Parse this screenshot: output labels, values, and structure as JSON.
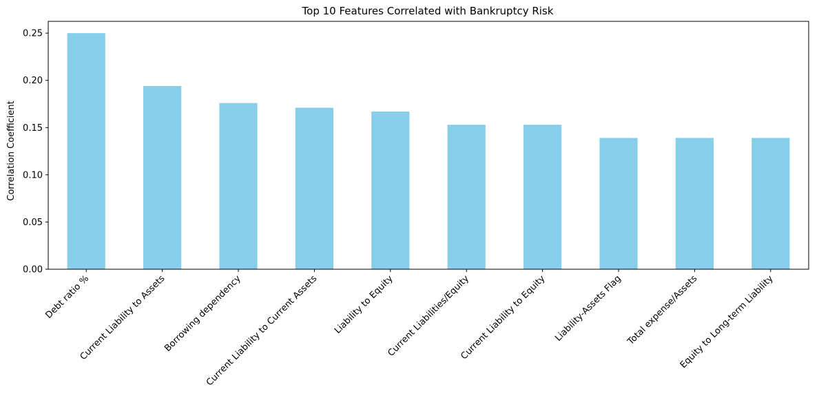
{
  "chart_data": {
    "type": "bar",
    "title": "Top 10 Features Correlated with Bankruptcy Risk",
    "xlabel": "",
    "ylabel": "Correlation Coefficient",
    "categories": [
      "Debt ratio %",
      "Current Liability to Assets",
      "Borrowing dependency",
      "Current Liability to Current Assets",
      "Liability to Equity",
      "Current Liabilities/Equity",
      "Current Liability to Equity",
      "Liability-Assets Flag",
      "Total expense/Assets",
      "Equity to Long-term Liability"
    ],
    "values": [
      0.25,
      0.194,
      0.176,
      0.171,
      0.167,
      0.153,
      0.153,
      0.139,
      0.139,
      0.139
    ],
    "ylim": [
      0,
      0.2625
    ],
    "yticks": [
      0.0,
      0.05,
      0.1,
      0.15,
      0.2,
      0.25
    ],
    "ytick_labels": [
      "0.00",
      "0.05",
      "0.10",
      "0.15",
      "0.20",
      "0.25"
    ],
    "bar_color": "#87ceeb",
    "grid": false,
    "legend": "none"
  }
}
